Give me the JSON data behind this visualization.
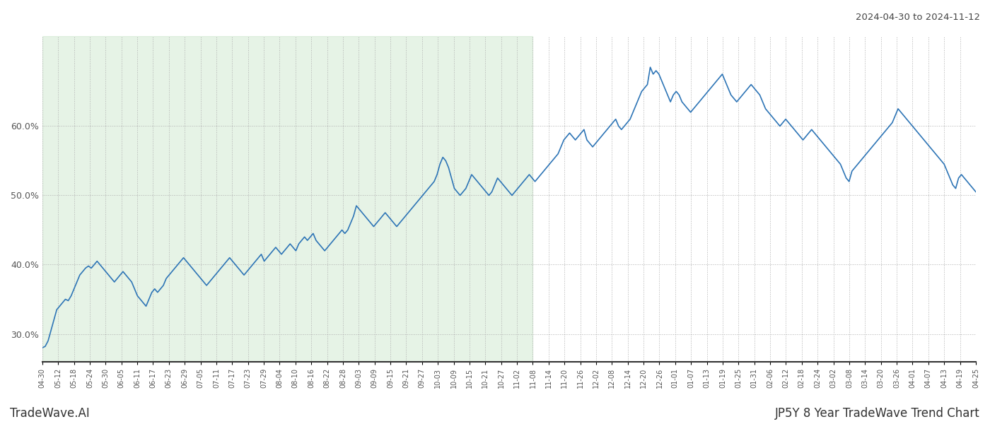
{
  "title_top_right": "2024-04-30 to 2024-11-12",
  "title_bottom_left": "TradeWave.AI",
  "title_bottom_right": "JP5Y 8 Year TradeWave Trend Chart",
  "line_color": "#2e75b6",
  "line_width": 1.2,
  "shaded_color": "#c8e6c9",
  "shaded_alpha": 0.45,
  "background_color": "#ffffff",
  "grid_color": "#b0b0b0",
  "ylim": [
    26.0,
    73.0
  ],
  "yticks": [
    30.0,
    40.0,
    50.0,
    60.0
  ],
  "x_labels": [
    "04-30",
    "05-12",
    "05-18",
    "05-24",
    "05-30",
    "06-05",
    "06-11",
    "06-17",
    "06-23",
    "06-29",
    "07-05",
    "07-11",
    "07-17",
    "07-23",
    "07-29",
    "08-04",
    "08-10",
    "08-16",
    "08-22",
    "08-28",
    "09-03",
    "09-09",
    "09-15",
    "09-21",
    "09-27",
    "10-03",
    "10-09",
    "10-15",
    "10-21",
    "10-27",
    "11-02",
    "11-08",
    "11-14",
    "11-20",
    "11-26",
    "12-02",
    "12-08",
    "12-14",
    "12-20",
    "12-26",
    "01-01",
    "01-07",
    "01-13",
    "01-19",
    "01-25",
    "01-31",
    "02-06",
    "02-12",
    "02-18",
    "02-24",
    "03-02",
    "03-08",
    "03-14",
    "03-20",
    "03-26",
    "04-01",
    "04-07",
    "04-13",
    "04-19",
    "04-25"
  ],
  "shaded_x_start_label": "04-30",
  "shaded_x_end_label": "11-08",
  "y_values": [
    28.0,
    28.2,
    29.0,
    30.5,
    32.0,
    33.5,
    34.0,
    34.5,
    35.0,
    34.8,
    35.5,
    36.5,
    37.5,
    38.5,
    39.0,
    39.5,
    39.8,
    39.5,
    40.0,
    40.5,
    40.0,
    39.5,
    39.0,
    38.5,
    38.0,
    37.5,
    38.0,
    38.5,
    39.0,
    38.5,
    38.0,
    37.5,
    36.5,
    35.5,
    35.0,
    34.5,
    34.0,
    35.0,
    36.0,
    36.5,
    36.0,
    36.5,
    37.0,
    38.0,
    38.5,
    39.0,
    39.5,
    40.0,
    40.5,
    41.0,
    40.5,
    40.0,
    39.5,
    39.0,
    38.5,
    38.0,
    37.5,
    37.0,
    37.5,
    38.0,
    38.5,
    39.0,
    39.5,
    40.0,
    40.5,
    41.0,
    40.5,
    40.0,
    39.5,
    39.0,
    38.5,
    39.0,
    39.5,
    40.0,
    40.5,
    41.0,
    41.5,
    40.5,
    41.0,
    41.5,
    42.0,
    42.5,
    42.0,
    41.5,
    42.0,
    42.5,
    43.0,
    42.5,
    42.0,
    43.0,
    43.5,
    44.0,
    43.5,
    44.0,
    44.5,
    43.5,
    43.0,
    42.5,
    42.0,
    42.5,
    43.0,
    43.5,
    44.0,
    44.5,
    45.0,
    44.5,
    45.0,
    46.0,
    47.0,
    48.5,
    48.0,
    47.5,
    47.0,
    46.5,
    46.0,
    45.5,
    46.0,
    46.5,
    47.0,
    47.5,
    47.0,
    46.5,
    46.0,
    45.5,
    46.0,
    46.5,
    47.0,
    47.5,
    48.0,
    48.5,
    49.0,
    49.5,
    50.0,
    50.5,
    51.0,
    51.5,
    52.0,
    53.0,
    54.5,
    55.5,
    55.0,
    54.0,
    52.5,
    51.0,
    50.5,
    50.0,
    50.5,
    51.0,
    52.0,
    53.0,
    52.5,
    52.0,
    51.5,
    51.0,
    50.5,
    50.0,
    50.5,
    51.5,
    52.5,
    52.0,
    51.5,
    51.0,
    50.5,
    50.0,
    50.5,
    51.0,
    51.5,
    52.0,
    52.5,
    53.0,
    52.5,
    52.0,
    52.5,
    53.0,
    53.5,
    54.0,
    54.5,
    55.0,
    55.5,
    56.0,
    57.0,
    58.0,
    58.5,
    59.0,
    58.5,
    58.0,
    58.5,
    59.0,
    59.5,
    58.0,
    57.5,
    57.0,
    57.5,
    58.0,
    58.5,
    59.0,
    59.5,
    60.0,
    60.5,
    61.0,
    60.0,
    59.5,
    60.0,
    60.5,
    61.0,
    62.0,
    63.0,
    64.0,
    65.0,
    65.5,
    66.0,
    68.5,
    67.5,
    68.0,
    67.5,
    66.5,
    65.5,
    64.5,
    63.5,
    64.5,
    65.0,
    64.5,
    63.5,
    63.0,
    62.5,
    62.0,
    62.5,
    63.0,
    63.5,
    64.0,
    64.5,
    65.0,
    65.5,
    66.0,
    66.5,
    67.0,
    67.5,
    66.5,
    65.5,
    64.5,
    64.0,
    63.5,
    64.0,
    64.5,
    65.0,
    65.5,
    66.0,
    65.5,
    65.0,
    64.5,
    63.5,
    62.5,
    62.0,
    61.5,
    61.0,
    60.5,
    60.0,
    60.5,
    61.0,
    60.5,
    60.0,
    59.5,
    59.0,
    58.5,
    58.0,
    58.5,
    59.0,
    59.5,
    59.0,
    58.5,
    58.0,
    57.5,
    57.0,
    56.5,
    56.0,
    55.5,
    55.0,
    54.5,
    53.5,
    52.5,
    52.0,
    53.5,
    54.0,
    54.5,
    55.0,
    55.5,
    56.0,
    56.5,
    57.0,
    57.5,
    58.0,
    58.5,
    59.0,
    59.5,
    60.0,
    60.5,
    61.5,
    62.5,
    62.0,
    61.5,
    61.0,
    60.5,
    60.0,
    59.5,
    59.0,
    58.5,
    58.0,
    57.5,
    57.0,
    56.5,
    56.0,
    55.5,
    55.0,
    54.5,
    53.5,
    52.5,
    51.5,
    51.0,
    52.5,
    53.0,
    52.5,
    52.0,
    51.5,
    51.0,
    50.5
  ]
}
